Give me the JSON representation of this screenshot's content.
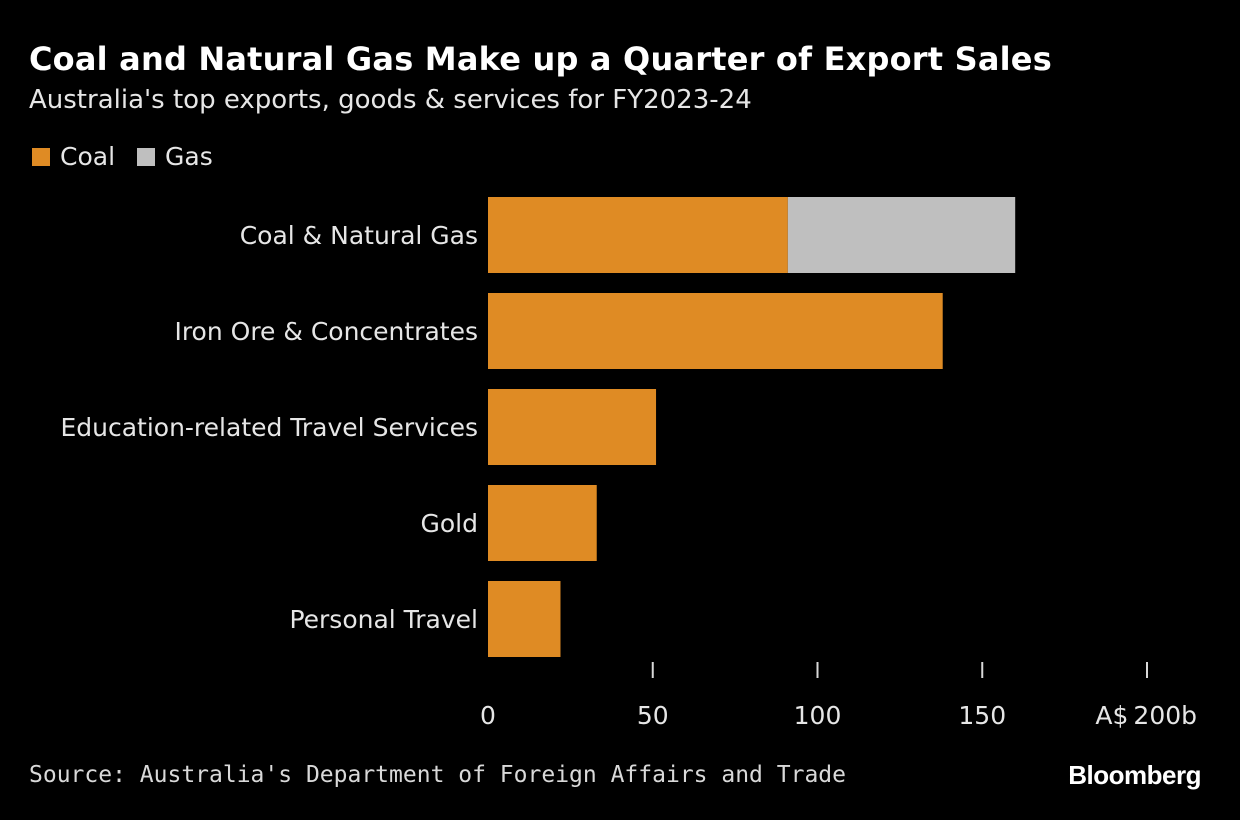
{
  "header": {
    "title": "Coal and Natural Gas Make up a Quarter of Export Sales",
    "subtitle": "Australia's top exports, goods & services for FY2023-24"
  },
  "footer": {
    "source": "Source: Australia's Department of Foreign Affairs and Trade",
    "logo": "Bloomberg"
  },
  "colors": {
    "background": "#000000",
    "coal": "#df8b24",
    "gas": "#bfbfbf",
    "text": "#e6e6e6",
    "tick": "#d9d9d9"
  },
  "chart_data": {
    "type": "bar",
    "orientation": "horizontal",
    "stacked": true,
    "title": "Coal and Natural Gas Make up a Quarter of Export Sales",
    "subtitle": "Australia's top exports, goods & services for FY2023-24",
    "categories": [
      "Coal & Natural Gas",
      "Iron Ore & Concentrates",
      "Education-related Travel Services",
      "Gold",
      "Personal Travel"
    ],
    "series": [
      {
        "name": "Coal",
        "color": "#df8b24",
        "values": [
          91,
          138,
          51,
          33,
          22
        ]
      },
      {
        "name": "Gas",
        "color": "#bfbfbf",
        "values": [
          69,
          0,
          0,
          0,
          0
        ]
      }
    ],
    "xlim": [
      0,
      200
    ],
    "xticks": [
      0,
      50,
      100,
      150,
      200
    ],
    "xtick_labels": [
      "0",
      "50",
      "100",
      "150",
      "A$ 200b"
    ],
    "xlabel": "",
    "ylabel": "",
    "grid": false,
    "legend": "top-left"
  }
}
